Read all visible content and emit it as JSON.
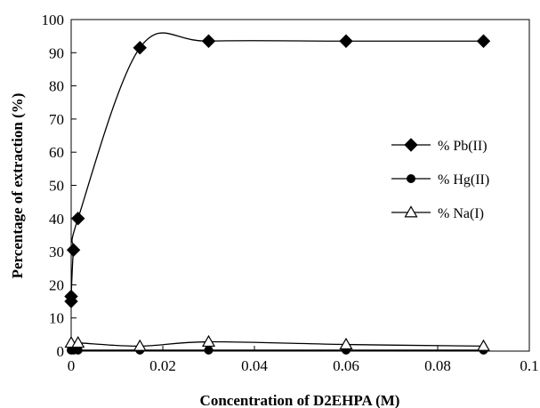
{
  "chart_data": {
    "type": "line",
    "title": "",
    "xlabel": "Concentration of D2EHPA (M)",
    "ylabel": "Percentage of extraction (%)",
    "xlim": [
      0,
      0.1
    ],
    "ylim": [
      0,
      100
    ],
    "xticks": [
      "0",
      "0.02",
      "0.04",
      "0.06",
      "0.08",
      "0.1"
    ],
    "yticks": [
      "0",
      "10",
      "20",
      "30",
      "40",
      "50",
      "60",
      "70",
      "80",
      "90",
      "100"
    ],
    "grid": false,
    "legend_position": "right",
    "series": [
      {
        "name": "% Pb(II)",
        "marker": "diamond",
        "x": [
          0,
          0,
          0.0005,
          0.0015,
          0.015,
          0.03,
          0.06,
          0.09
        ],
        "y": [
          15,
          16.5,
          30.5,
          40,
          91.5,
          93.5,
          93.5,
          93.5
        ]
      },
      {
        "name": "% Hg(II)",
        "marker": "circle",
        "x": [
          0,
          0.0005,
          0.0015,
          0.015,
          0.03,
          0.06,
          0.09
        ],
        "y": [
          0.3,
          0.3,
          0.3,
          0.3,
          0.3,
          0.3,
          0.3
        ]
      },
      {
        "name": "% Na(I)",
        "marker": "triangle-open",
        "x": [
          0,
          0.0015,
          0.015,
          0.03,
          0.06,
          0.09
        ],
        "y": [
          2.5,
          2.5,
          1.5,
          2.8,
          2.0,
          1.5
        ]
      }
    ]
  }
}
